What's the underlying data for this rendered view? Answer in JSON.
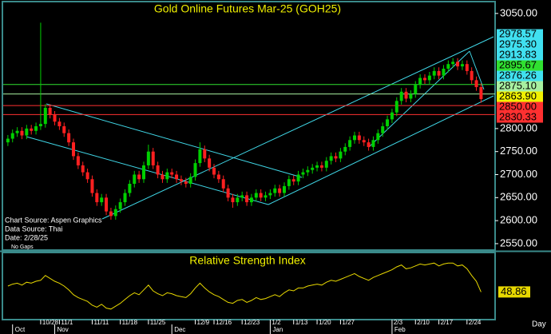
{
  "chart_data": [
    {
      "type": "candlestick",
      "title": "Gold Online Futures Mar-25 (GOH25)",
      "annotations": [
        "Chart Source: Aspen Graphics",
        "Data Source: Thai",
        "Date:    2/28/25",
        "No Gaps"
      ],
      "xlabel": "Day",
      "up_color": "#00d000",
      "down_color": "#ff2020",
      "open": [
        2770,
        2778,
        2790,
        2795,
        2785,
        2800,
        2795,
        2805,
        2810,
        2845,
        2830,
        2815,
        2805,
        2790,
        2770,
        2740,
        2720,
        2705,
        2690,
        2660,
        2640,
        2650,
        2620,
        2610,
        2625,
        2640,
        2660,
        2680,
        2700,
        2690,
        2720,
        2750,
        2720,
        2700,
        2690,
        2705,
        2700,
        2690,
        2685,
        2680,
        2695,
        2725,
        2755,
        2735,
        2715,
        2700,
        2690,
        2670,
        2650,
        2640,
        2650,
        2655,
        2640,
        2650,
        2660,
        2650,
        2655,
        2660,
        2670,
        2660,
        2675,
        2690,
        2685,
        2700,
        2705,
        2710,
        2715,
        2720,
        2715,
        2730,
        2740,
        2735,
        2750,
        2760,
        2775,
        2785,
        2775,
        2770,
        2760,
        2775,
        2790,
        2805,
        2820,
        2835,
        2860,
        2880,
        2865,
        2875,
        2895,
        2910,
        2905,
        2915,
        2925,
        2915,
        2930,
        2940,
        2945,
        2935,
        2940,
        2925,
        2905,
        2890
      ],
      "high": [
        2786,
        2798,
        2803,
        2803,
        2808,
        2808,
        2813,
        3030,
        2853,
        2853,
        2838,
        2823,
        2813,
        2798,
        2778,
        2748,
        2728,
        2713,
        2698,
        2668,
        2658,
        2658,
        2628,
        2633,
        2648,
        2668,
        2688,
        2708,
        2708,
        2728,
        2765,
        2758,
        2728,
        2708,
        2713,
        2713,
        2708,
        2698,
        2693,
        2703,
        2733,
        2770,
        2763,
        2743,
        2723,
        2708,
        2698,
        2678,
        2658,
        2658,
        2663,
        2663,
        2658,
        2668,
        2668,
        2663,
        2668,
        2678,
        2678,
        2683,
        2698,
        2698,
        2708,
        2713,
        2718,
        2723,
        2728,
        2728,
        2738,
        2748,
        2748,
        2758,
        2768,
        2783,
        2793,
        2793,
        2783,
        2778,
        2783,
        2798,
        2813,
        2828,
        2843,
        2868,
        2888,
        2888,
        2883,
        2903,
        2918,
        2918,
        2923,
        2933,
        2933,
        2938,
        2948,
        2953,
        2953,
        2948,
        2948,
        2933,
        2913,
        2898
      ],
      "low": [
        2762,
        2770,
        2782,
        2777,
        2777,
        2787,
        2787,
        2797,
        2802,
        2822,
        2807,
        2797,
        2782,
        2762,
        2732,
        2712,
        2697,
        2682,
        2652,
        2632,
        2632,
        2612,
        2602,
        2602,
        2617,
        2632,
        2652,
        2672,
        2682,
        2682,
        2712,
        2712,
        2692,
        2682,
        2682,
        2692,
        2682,
        2677,
        2672,
        2672,
        2687,
        2717,
        2727,
        2707,
        2692,
        2682,
        2662,
        2642,
        2628,
        2632,
        2642,
        2632,
        2632,
        2642,
        2642,
        2642,
        2647,
        2652,
        2652,
        2652,
        2667,
        2677,
        2677,
        2692,
        2697,
        2702,
        2707,
        2707,
        2707,
        2722,
        2727,
        2727,
        2742,
        2752,
        2767,
        2767,
        2762,
        2752,
        2752,
        2767,
        2782,
        2797,
        2812,
        2827,
        2852,
        2857,
        2857,
        2867,
        2887,
        2897,
        2897,
        2907,
        2907,
        2907,
        2922,
        2932,
        2927,
        2927,
        2917,
        2897,
        2882,
        2856
      ],
      "close": [
        2778,
        2790,
        2795,
        2785,
        2800,
        2795,
        2805,
        2810,
        2845,
        2830,
        2815,
        2805,
        2790,
        2770,
        2740,
        2720,
        2705,
        2690,
        2660,
        2640,
        2650,
        2620,
        2610,
        2625,
        2640,
        2660,
        2680,
        2700,
        2690,
        2720,
        2750,
        2720,
        2700,
        2690,
        2705,
        2700,
        2690,
        2685,
        2680,
        2695,
        2725,
        2755,
        2735,
        2715,
        2700,
        2690,
        2670,
        2650,
        2640,
        2650,
        2655,
        2640,
        2650,
        2660,
        2650,
        2655,
        2660,
        2670,
        2660,
        2675,
        2690,
        2685,
        2700,
        2705,
        2710,
        2715,
        2720,
        2715,
        2730,
        2740,
        2735,
        2750,
        2760,
        2775,
        2785,
        2775,
        2770,
        2760,
        2775,
        2790,
        2805,
        2820,
        2835,
        2860,
        2880,
        2865,
        2875,
        2895,
        2910,
        2905,
        2915,
        2925,
        2915,
        2930,
        2940,
        2945,
        2935,
        2940,
        2925,
        2905,
        2890,
        2864
      ],
      "xlim": [
        -1,
        104
      ],
      "ylim": [
        2536,
        3074
      ],
      "yticks": [
        {
          "value": 3050,
          "label": "3050.00"
        },
        {
          "value": 2800,
          "label": "2800.00"
        },
        {
          "value": 2750,
          "label": "2750.00"
        },
        {
          "value": 2700,
          "label": "2700.00"
        },
        {
          "value": 2650,
          "label": "2650.00"
        },
        {
          "value": 2600,
          "label": "2600.00"
        },
        {
          "value": 2550,
          "label": "2550.00"
        }
      ],
      "levels": [
        {
          "value": 2978.57,
          "label": "2978.57",
          "color": "#40e0f0",
          "show_line": false
        },
        {
          "value": 2975.3,
          "label": "2975.30",
          "color": "#40e0f0",
          "show_line": false
        },
        {
          "value": 2913.83,
          "label": "2913.83",
          "color": "#40e0f0",
          "show_line": false
        },
        {
          "value": 2895.67,
          "label": "2895.67",
          "color": "#30e030",
          "show_line": true
        },
        {
          "value": 2876.26,
          "label": "2876.26",
          "color": "#40e0f0",
          "show_line": false
        },
        {
          "value": 2875.1,
          "label": "2875.10",
          "color": "#a8f0a0",
          "show_line": true
        },
        {
          "value": 2863.9,
          "label": "2863.90",
          "color": "#f0f000",
          "show_line": false
        },
        {
          "value": 2850,
          "label": "2850.00",
          "color": "#ff3030",
          "show_line": true
        },
        {
          "value": 2830.33,
          "label": "2830.33",
          "color": "#ff3030",
          "show_line": true
        }
      ],
      "xticks": [
        {
          "value": 7,
          "label": "10/28"
        },
        {
          "value": 11,
          "label": "11/1"
        },
        {
          "value": 18,
          "label": "11/11"
        },
        {
          "value": 24,
          "label": "11/18"
        },
        {
          "value": 30,
          "label": "11/25"
        },
        {
          "value": 40,
          "label": "12/9"
        },
        {
          "value": 44,
          "label": "12/16"
        },
        {
          "value": 50,
          "label": "12/23"
        },
        {
          "value": 56,
          "label": "1/2"
        },
        {
          "value": 61,
          "label": "1/13"
        },
        {
          "value": 66,
          "label": "1/20"
        },
        {
          "value": 71,
          "label": "1/27"
        },
        {
          "value": 82,
          "label": "2/3"
        },
        {
          "value": 87,
          "label": "2/10"
        },
        {
          "value": 92,
          "label": "2/17"
        },
        {
          "value": 98,
          "label": "2/24"
        }
      ],
      "month_ticks": [
        {
          "value": 1,
          "label": "Oct"
        },
        {
          "value": 10,
          "label": "Nov"
        },
        {
          "value": 35,
          "label": "Dec"
        },
        {
          "value": 56,
          "label": "Jan"
        },
        {
          "value": 82,
          "label": "Feb"
        }
      ]
    },
    {
      "type": "line",
      "title": "Relative Strength Index",
      "color": "#e8d800",
      "values": [
        55,
        57,
        58,
        56,
        59,
        58,
        60,
        61,
        66,
        63,
        60,
        58,
        55,
        51,
        46,
        43,
        41,
        39,
        35,
        33,
        36,
        32,
        31,
        34,
        37,
        41,
        45,
        48,
        46,
        51,
        56,
        50,
        47,
        45,
        48,
        47,
        45,
        44,
        43,
        47,
        53,
        58,
        53,
        49,
        46,
        44,
        41,
        38,
        37,
        40,
        41,
        38,
        40,
        43,
        41,
        42,
        44,
        46,
        44,
        48,
        51,
        50,
        53,
        53,
        55,
        56,
        57,
        56,
        59,
        61,
        60,
        62,
        64,
        66,
        68,
        65,
        63,
        61,
        64,
        66,
        68,
        70,
        72,
        75,
        77,
        73,
        74,
        76,
        78,
        77,
        78,
        79,
        76,
        78,
        79,
        79,
        76,
        77,
        73,
        66,
        60,
        48.86
      ],
      "xlim": [
        -1,
        104
      ],
      "ylim": [
        20,
        90
      ]
    }
  ]
}
